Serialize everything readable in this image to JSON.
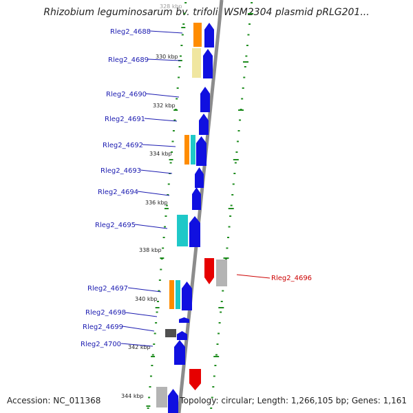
{
  "title": "Rhizobium leguminosarum bv. trifolii WSM2304 plasmid pRLG201...",
  "footer": {
    "accession": "Accession: NC_011368",
    "summary": "Topology: circular; Length: 1,266,105 bp; Genes: 1,161"
  },
  "colors": {
    "backbone": "#8c8c8c",
    "dots": "#1e8c1e",
    "blue": "#1010e0",
    "red": "#e60000",
    "orange": "#ff8c00",
    "cyan": "#1ec8c8",
    "yellow": "#f0e6a0",
    "gray": "#b4b4b4",
    "dark": "#505050",
    "label_blue": "#1a1ab0",
    "label_red": "#cc0000"
  },
  "kbp_ticks": [
    {
      "label": "328 kbp",
      "value": 328
    },
    {
      "label": "330 kbp",
      "value": 330
    },
    {
      "label": "332 kbp",
      "value": 332
    },
    {
      "label": "334 kbp",
      "value": 334
    },
    {
      "label": "336 kbp",
      "value": 336
    },
    {
      "label": "338 kbp",
      "value": 338
    },
    {
      "label": "340 kbp",
      "value": 340
    },
    {
      "label": "342 kbp",
      "value": 342
    },
    {
      "label": "344 kbp",
      "value": 344
    }
  ],
  "genes": [
    {
      "id": "Rleg2_4688",
      "strand": "+",
      "color_key": "blue",
      "tracks": [
        "orange"
      ]
    },
    {
      "id": "Rleg2_4689",
      "strand": "+",
      "color_key": "blue",
      "tracks": [
        "yellow"
      ]
    },
    {
      "id": "Rleg2_4690",
      "strand": "+",
      "color_key": "blue",
      "tracks": []
    },
    {
      "id": "Rleg2_4691",
      "strand": "+",
      "color_key": "blue",
      "tracks": []
    },
    {
      "id": "Rleg2_4692",
      "strand": "+",
      "color_key": "blue",
      "tracks": [
        "orange",
        "cyan"
      ]
    },
    {
      "id": "Rleg2_4693",
      "strand": "+",
      "color_key": "blue",
      "tracks": []
    },
    {
      "id": "Rleg2_4694",
      "strand": "+",
      "color_key": "blue",
      "tracks": []
    },
    {
      "id": "Rleg2_4695",
      "strand": "+",
      "color_key": "blue",
      "tracks": [
        "cyan"
      ]
    },
    {
      "id": "Rleg2_4696",
      "strand": "-",
      "color_key": "red",
      "tracks": [
        "gray"
      ]
    },
    {
      "id": "Rleg2_4697",
      "strand": "+",
      "color_key": "blue",
      "tracks": [
        "orange",
        "cyan"
      ]
    },
    {
      "id": "Rleg2_4698",
      "strand": "+",
      "color_key": "blue",
      "tracks": []
    },
    {
      "id": "Rleg2_4699",
      "strand": "+",
      "color_key": "blue",
      "tracks": [
        "dark"
      ]
    },
    {
      "id": "Rleg2_4700",
      "strand": "+",
      "color_key": "blue",
      "tracks": []
    }
  ]
}
